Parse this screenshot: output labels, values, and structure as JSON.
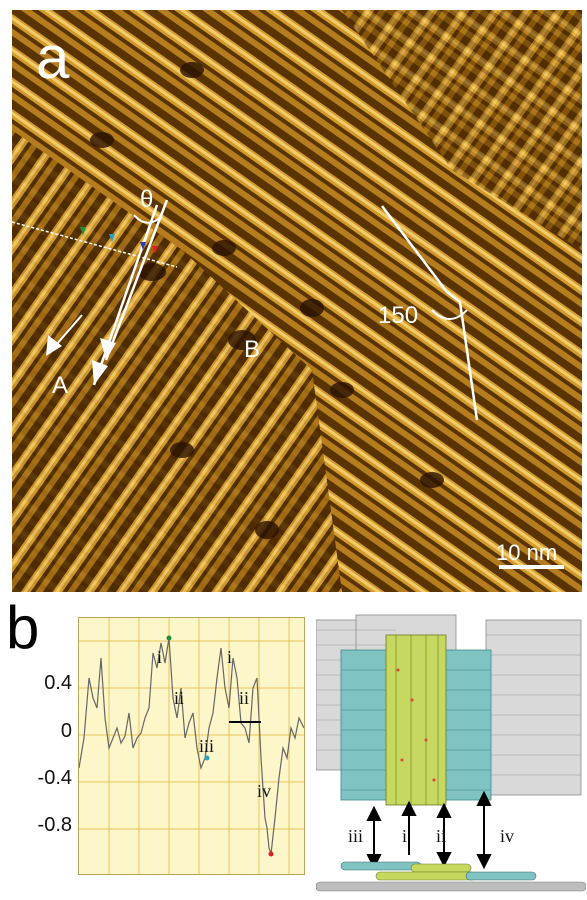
{
  "panel_a": {
    "letter": "a",
    "labels": {
      "theta": "θ",
      "angle": "150",
      "line_a": "A",
      "region_b": "B"
    },
    "scale_bar": "10 nm"
  },
  "panel_b": {
    "letter": "b",
    "plot": {
      "y_ticks": [
        "0.4",
        "0",
        "-0.4",
        "-0.8"
      ],
      "markers": [
        "i",
        "ii",
        "iii",
        "i",
        "ii",
        "iv"
      ],
      "colors": {
        "background": "#fdf6c8",
        "grid": "#e7c45a",
        "line": "#666666"
      }
    },
    "model": {
      "arrow_labels": [
        "iii",
        "i",
        "ii",
        "iv"
      ]
    }
  }
}
